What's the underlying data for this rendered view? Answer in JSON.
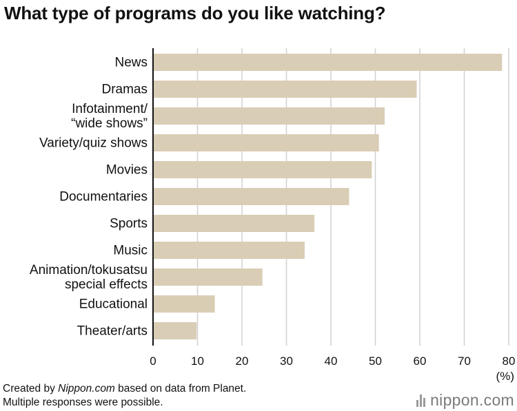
{
  "chart_data": {
    "type": "bar",
    "orientation": "horizontal",
    "title": "What type of programs do you like watching?",
    "unit_label": "(%)",
    "categories": [
      [
        "News"
      ],
      [
        "Dramas"
      ],
      [
        "Infotainment/",
        "“wide shows”"
      ],
      [
        "Variety/quiz shows"
      ],
      [
        "Movies"
      ],
      [
        "Documentaries"
      ],
      [
        "Sports"
      ],
      [
        "Music"
      ],
      [
        "Animation/tokusatsu",
        "special effects"
      ],
      [
        "Educational"
      ],
      [
        "Theater/arts"
      ]
    ],
    "values": [
      78.5,
      59.3,
      52.1,
      50.8,
      49.2,
      44.1,
      36.3,
      34.1,
      24.6,
      13.9,
      9.8
    ],
    "xlim": [
      0,
      80
    ],
    "xticks": [
      0,
      10,
      20,
      30,
      40,
      50,
      60,
      70,
      80
    ],
    "grid": true,
    "bar_color": "#d9cdb5"
  },
  "footnotes": {
    "line1_prefix": "Created by ",
    "line1_source": "Nippon.com",
    "line1_suffix": " based on data from Planet.",
    "line2": "Multiple responses were possible."
  },
  "brand": {
    "name": "nippon",
    "suffix": ".com"
  }
}
